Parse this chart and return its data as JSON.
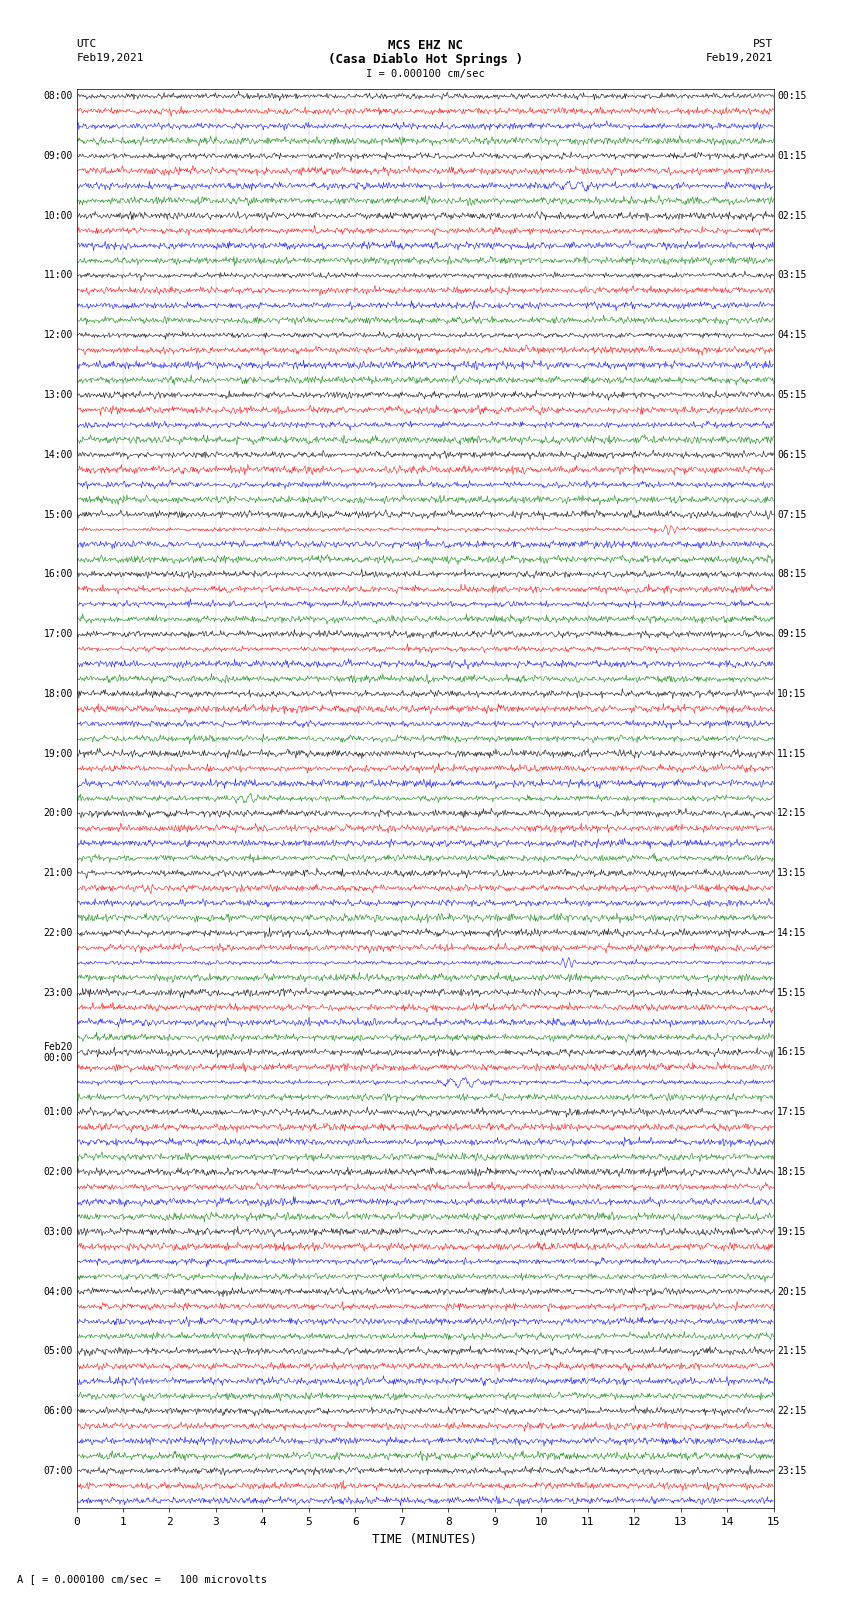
{
  "title_line1": "MCS EHZ NC",
  "title_line2": "(Casa Diablo Hot Springs )",
  "title_line3": "I = 0.000100 cm/sec",
  "left_header": "UTC",
  "left_date": "Feb19,2021",
  "right_header": "PST",
  "right_date": "Feb19,2021",
  "xlabel": "TIME (MINUTES)",
  "footnote": "A [ = 0.000100 cm/sec =   100 microvolts",
  "xmin": 0,
  "xmax": 15,
  "xticks": [
    0,
    1,
    2,
    3,
    4,
    5,
    6,
    7,
    8,
    9,
    10,
    11,
    12,
    13,
    14,
    15
  ],
  "trace_colors": [
    "black",
    "red",
    "blue",
    "green"
  ],
  "left_time_labels": [
    "08:00",
    "",
    "",
    "",
    "09:00",
    "",
    "",
    "",
    "10:00",
    "",
    "",
    "",
    "11:00",
    "",
    "",
    "",
    "12:00",
    "",
    "",
    "",
    "13:00",
    "",
    "",
    "",
    "14:00",
    "",
    "",
    "",
    "15:00",
    "",
    "",
    "",
    "16:00",
    "",
    "",
    "",
    "17:00",
    "",
    "",
    "",
    "18:00",
    "",
    "",
    "",
    "19:00",
    "",
    "",
    "",
    "20:00",
    "",
    "",
    "",
    "21:00",
    "",
    "",
    "",
    "22:00",
    "",
    "",
    "",
    "23:00",
    "",
    "",
    "",
    "Feb20\n00:00",
    "",
    "",
    "",
    "01:00",
    "",
    "",
    "",
    "02:00",
    "",
    "",
    "",
    "03:00",
    "",
    "",
    "",
    "04:00",
    "",
    "",
    "",
    "05:00",
    "",
    "",
    "",
    "06:00",
    "",
    "",
    "",
    "07:00",
    "",
    ""
  ],
  "right_time_labels": [
    "00:15",
    "",
    "",
    "",
    "01:15",
    "",
    "",
    "",
    "02:15",
    "",
    "",
    "",
    "03:15",
    "",
    "",
    "",
    "04:15",
    "",
    "",
    "",
    "05:15",
    "",
    "",
    "",
    "06:15",
    "",
    "",
    "",
    "07:15",
    "",
    "",
    "",
    "08:15",
    "",
    "",
    "",
    "09:15",
    "",
    "",
    "",
    "10:15",
    "",
    "",
    "",
    "11:15",
    "",
    "",
    "",
    "12:15",
    "",
    "",
    "",
    "13:15",
    "",
    "",
    "",
    "14:15",
    "",
    "",
    "",
    "15:15",
    "",
    "",
    "",
    "16:15",
    "",
    "",
    "",
    "17:15",
    "",
    "",
    "",
    "18:15",
    "",
    "",
    "",
    "19:15",
    "",
    "",
    "",
    "20:15",
    "",
    "",
    "",
    "21:15",
    "",
    "",
    "",
    "22:15",
    "",
    "",
    "",
    "23:15",
    "",
    ""
  ],
  "n_traces": 95,
  "bg_color": "white",
  "fig_width": 8.5,
  "fig_height": 16.13,
  "dpi": 100
}
